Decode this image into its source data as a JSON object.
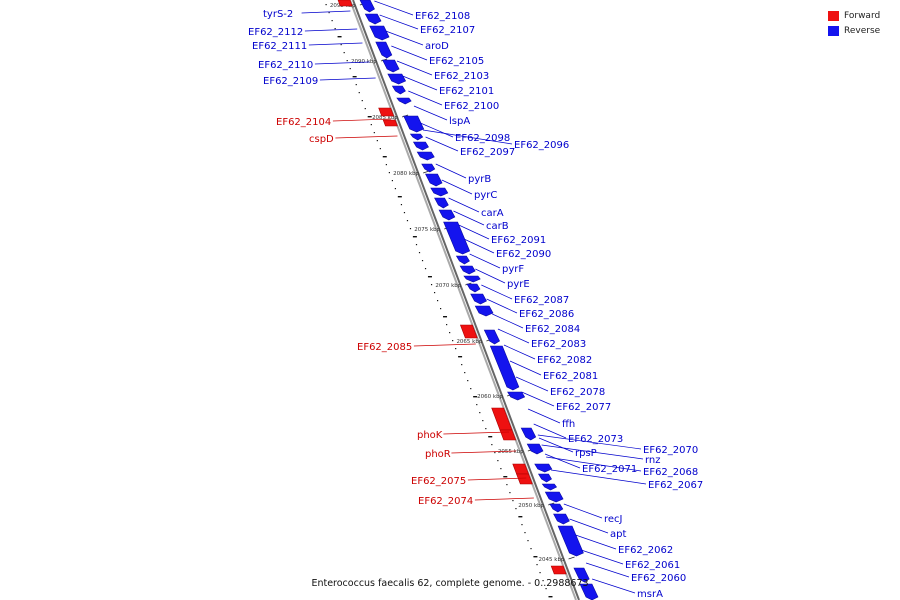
{
  "colors": {
    "forward": "#ee1111",
    "reverse": "#1414ee",
    "backbone": "#888888",
    "tick": "#222222"
  },
  "legend": {
    "forward_label": "Forward",
    "reverse_label": "Reverse"
  },
  "caption": "Enterococcus faecalis 62, complete genome. - 0..2988673",
  "ticks": [
    "2095 kbp",
    "2090 kbp",
    "2085 kbp",
    "2080 kbp",
    "2075 kbp",
    "2070 kbp",
    "2065 kbp",
    "2060 kbp",
    "2055 kbp",
    "2050 kbp",
    "2045 kbp"
  ],
  "genes": [
    {
      "name": "tyrS-2",
      "strand": "reverse"
    },
    {
      "name": "EF62_2112",
      "strand": "reverse"
    },
    {
      "name": "EF62_2111",
      "strand": "reverse"
    },
    {
      "name": "EF62_2110",
      "strand": "reverse"
    },
    {
      "name": "EF62_2109",
      "strand": "reverse"
    },
    {
      "name": "EF62_2108",
      "strand": "reverse"
    },
    {
      "name": "EF62_2107",
      "strand": "reverse"
    },
    {
      "name": "aroD",
      "strand": "reverse"
    },
    {
      "name": "EF62_2105",
      "strand": "reverse"
    },
    {
      "name": "EF62_2103",
      "strand": "reverse"
    },
    {
      "name": "EF62_2101",
      "strand": "reverse"
    },
    {
      "name": "EF62_2100",
      "strand": "reverse"
    },
    {
      "name": "EF62_2104",
      "strand": "forward"
    },
    {
      "name": "cspD",
      "strand": "forward"
    },
    {
      "name": "lspA",
      "strand": "reverse"
    },
    {
      "name": "EF62_2098",
      "strand": "reverse"
    },
    {
      "name": "EF62_2097",
      "strand": "reverse"
    },
    {
      "name": "EF62_2096",
      "strand": "reverse"
    },
    {
      "name": "pyrB",
      "strand": "reverse"
    },
    {
      "name": "pyrC",
      "strand": "reverse"
    },
    {
      "name": "carA",
      "strand": "reverse"
    },
    {
      "name": "carB",
      "strand": "reverse"
    },
    {
      "name": "EF62_2091",
      "strand": "reverse"
    },
    {
      "name": "EF62_2090",
      "strand": "reverse"
    },
    {
      "name": "pyrF",
      "strand": "reverse"
    },
    {
      "name": "pyrE",
      "strand": "reverse"
    },
    {
      "name": "EF62_2087",
      "strand": "reverse"
    },
    {
      "name": "EF62_2086",
      "strand": "reverse"
    },
    {
      "name": "EF62_2084",
      "strand": "reverse"
    },
    {
      "name": "EF62_2085",
      "strand": "forward"
    },
    {
      "name": "EF62_2083",
      "strand": "reverse"
    },
    {
      "name": "EF62_2082",
      "strand": "reverse"
    },
    {
      "name": "EF62_2081",
      "strand": "reverse"
    },
    {
      "name": "EF62_2078",
      "strand": "reverse"
    },
    {
      "name": "EF62_2077",
      "strand": "reverse"
    },
    {
      "name": "ffh",
      "strand": "reverse"
    },
    {
      "name": "phoK",
      "strand": "forward"
    },
    {
      "name": "phoR",
      "strand": "forward"
    },
    {
      "name": "EF62_2073",
      "strand": "reverse"
    },
    {
      "name": "rpsP",
      "strand": "reverse"
    },
    {
      "name": "EF62_2070",
      "strand": "reverse"
    },
    {
      "name": "rnz",
      "strand": "reverse"
    },
    {
      "name": "EF62_2071",
      "strand": "reverse"
    },
    {
      "name": "EF62_2068",
      "strand": "reverse"
    },
    {
      "name": "EF62_2067",
      "strand": "reverse"
    },
    {
      "name": "EF62_2075",
      "strand": "forward"
    },
    {
      "name": "EF62_2074",
      "strand": "forward"
    },
    {
      "name": "recJ",
      "strand": "reverse"
    },
    {
      "name": "apt",
      "strand": "reverse"
    },
    {
      "name": "EF62_2062",
      "strand": "reverse"
    },
    {
      "name": "EF62_2061",
      "strand": "reverse"
    },
    {
      "name": "EF62_2060",
      "strand": "reverse"
    },
    {
      "name": "msrA",
      "strand": "reverse"
    }
  ]
}
